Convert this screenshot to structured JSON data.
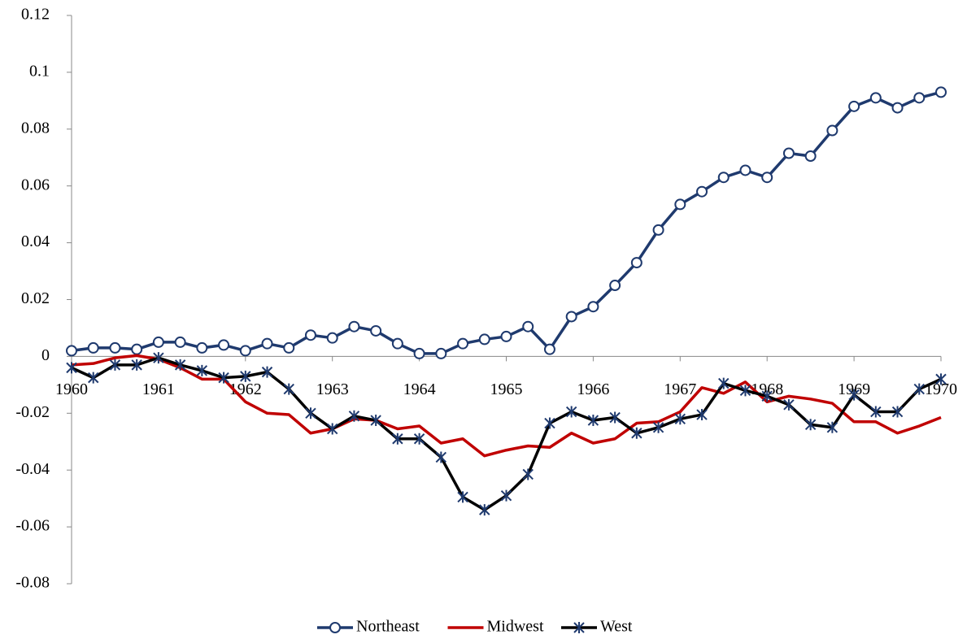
{
  "chart_data": {
    "type": "line",
    "x": [
      1960,
      1960.25,
      1960.5,
      1960.75,
      1961,
      1961.25,
      1961.5,
      1961.75,
      1962,
      1962.25,
      1962.5,
      1962.75,
      1963,
      1963.25,
      1963.5,
      1963.75,
      1964,
      1964.25,
      1964.5,
      1964.75,
      1965,
      1965.25,
      1965.5,
      1965.75,
      1966,
      1966.25,
      1966.5,
      1966.75,
      1967,
      1967.25,
      1967.5,
      1967.75,
      1968,
      1968.25,
      1968.5,
      1968.75,
      1969,
      1969.25,
      1969.5,
      1969.75,
      1970
    ],
    "series": [
      {
        "name": "Northeast",
        "color": "#1f3a6e",
        "marker": "circle",
        "marker_color": "#1f3a6e",
        "values": [
          0.002,
          0.003,
          0.003,
          0.0025,
          0.005,
          0.005,
          0.003,
          0.004,
          0.002,
          0.0045,
          0.003,
          0.0075,
          0.0065,
          0.0105,
          0.009,
          0.0045,
          0.001,
          0.001,
          0.0045,
          0.006,
          0.007,
          0.0105,
          0.0025,
          0.014,
          0.0175,
          0.025,
          0.033,
          0.0445,
          0.0535,
          0.058,
          0.063,
          0.0655,
          0.063,
          0.0715,
          0.0705,
          0.0795,
          0.088,
          0.091,
          0.0875,
          0.091,
          0.093
        ]
      },
      {
        "name": "Midwest",
        "color": "#c00000",
        "marker": "none",
        "values": [
          -0.003,
          -0.0025,
          -0.0005,
          0.0003,
          -0.001,
          -0.004,
          -0.008,
          -0.008,
          -0.016,
          -0.02,
          -0.0205,
          -0.027,
          -0.0255,
          -0.022,
          -0.0225,
          -0.0255,
          -0.0245,
          -0.0305,
          -0.029,
          -0.035,
          -0.033,
          -0.0315,
          -0.032,
          -0.027,
          -0.0305,
          -0.029,
          -0.0235,
          -0.023,
          -0.0195,
          -0.011,
          -0.013,
          -0.009,
          -0.016,
          -0.014,
          -0.015,
          -0.0165,
          -0.023,
          -0.023,
          -0.027,
          -0.0245,
          -0.0215
        ]
      },
      {
        "name": "West",
        "color": "#000000",
        "marker": "star",
        "marker_color": "#1f3a6e",
        "values": [
          -0.004,
          -0.0075,
          -0.003,
          -0.003,
          -0.0005,
          -0.003,
          -0.005,
          -0.0075,
          -0.007,
          -0.0055,
          -0.0115,
          -0.02,
          -0.0255,
          -0.021,
          -0.0225,
          -0.029,
          -0.029,
          -0.0355,
          -0.0495,
          -0.054,
          -0.049,
          -0.0415,
          -0.0235,
          -0.0195,
          -0.0225,
          -0.0215,
          -0.027,
          -0.025,
          -0.022,
          -0.0205,
          -0.0095,
          -0.012,
          -0.014,
          -0.017,
          -0.024,
          -0.025,
          -0.0135,
          -0.0195,
          -0.0195,
          -0.0115,
          -0.008
        ]
      }
    ],
    "xlim": [
      1960,
      1970
    ],
    "xticks": [
      1960,
      1961,
      1962,
      1963,
      1964,
      1965,
      1966,
      1967,
      1968,
      1969,
      1970
    ],
    "ylim": [
      -0.08,
      0.12
    ],
    "yticks": [
      0.12,
      0.1,
      0.08,
      0.06,
      0.04,
      0.02,
      0,
      -0.02,
      -0.04,
      -0.06,
      -0.08
    ],
    "grid": false,
    "legend": "bottom"
  }
}
